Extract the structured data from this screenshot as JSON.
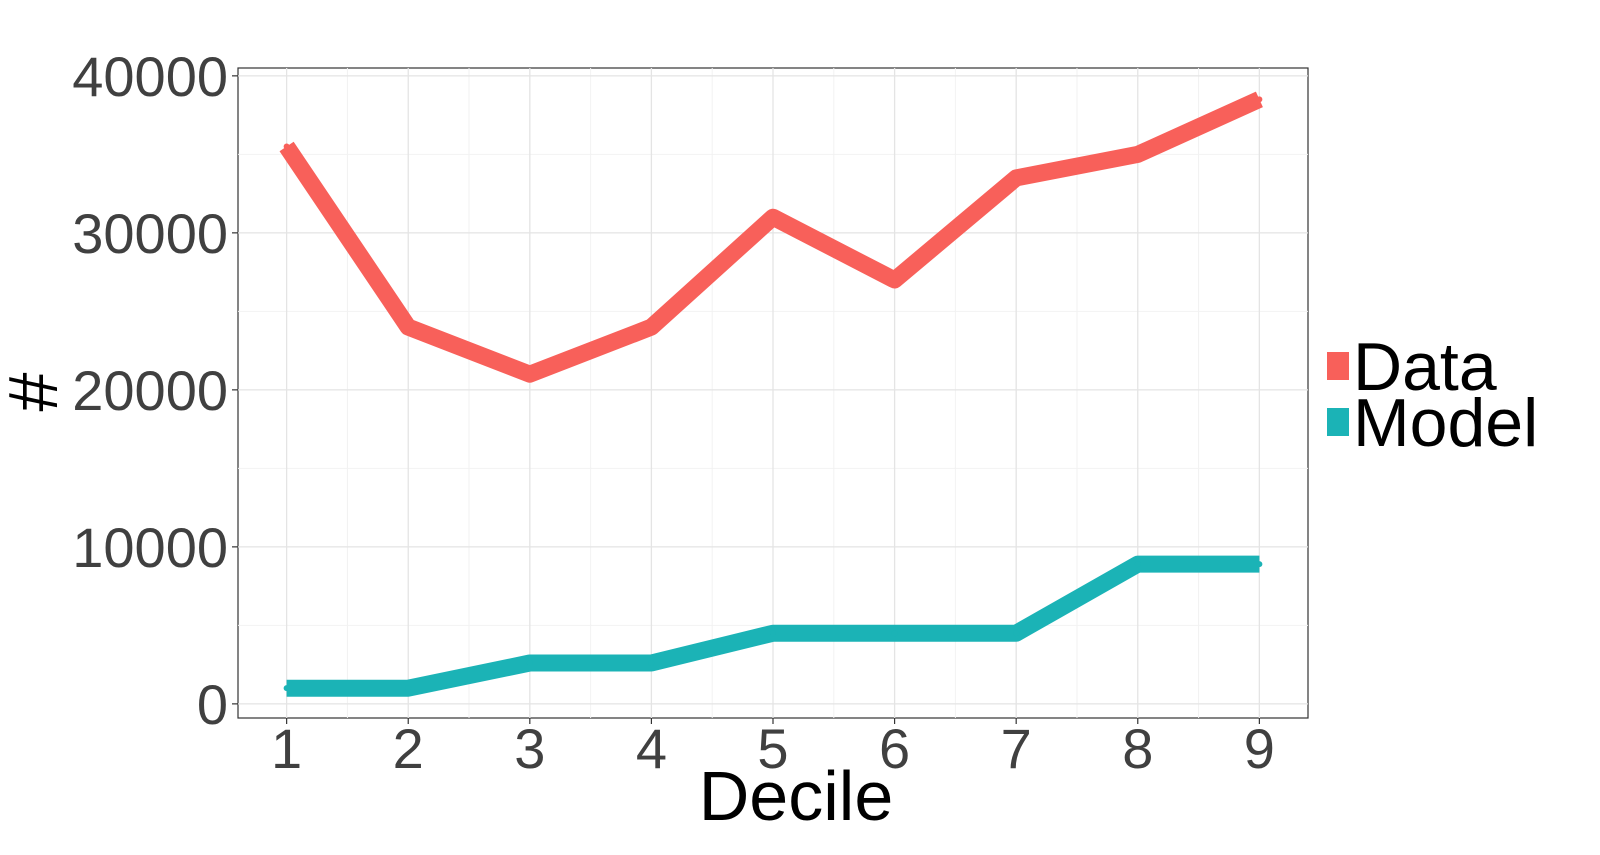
{
  "chart_data": {
    "type": "line",
    "title": "",
    "xlabel": "Decile",
    "ylabel": "#",
    "x": [
      1,
      2,
      3,
      4,
      5,
      6,
      7,
      8,
      9
    ],
    "xlim": [
      0.6,
      9.4
    ],
    "ylim": [
      -900,
      40500
    ],
    "yticks": [
      0,
      10000,
      20000,
      30000,
      40000
    ],
    "ytick_labels": [
      "0",
      "10000",
      "20000",
      "30000",
      "40000"
    ],
    "xtick_labels": [
      "1",
      "2",
      "3",
      "4",
      "5",
      "6",
      "7",
      "8",
      "9"
    ],
    "grid": true,
    "legend_position": "right",
    "series": [
      {
        "name": "Data",
        "color": "#f8605a",
        "values": [
          35500,
          24000,
          21000,
          24000,
          31000,
          27000,
          33500,
          35000,
          38500
        ]
      },
      {
        "name": "Model",
        "color": "#1bb3b6",
        "values": [
          1000,
          1000,
          2600,
          2600,
          4500,
          4500,
          4500,
          8900,
          8900
        ]
      }
    ]
  }
}
